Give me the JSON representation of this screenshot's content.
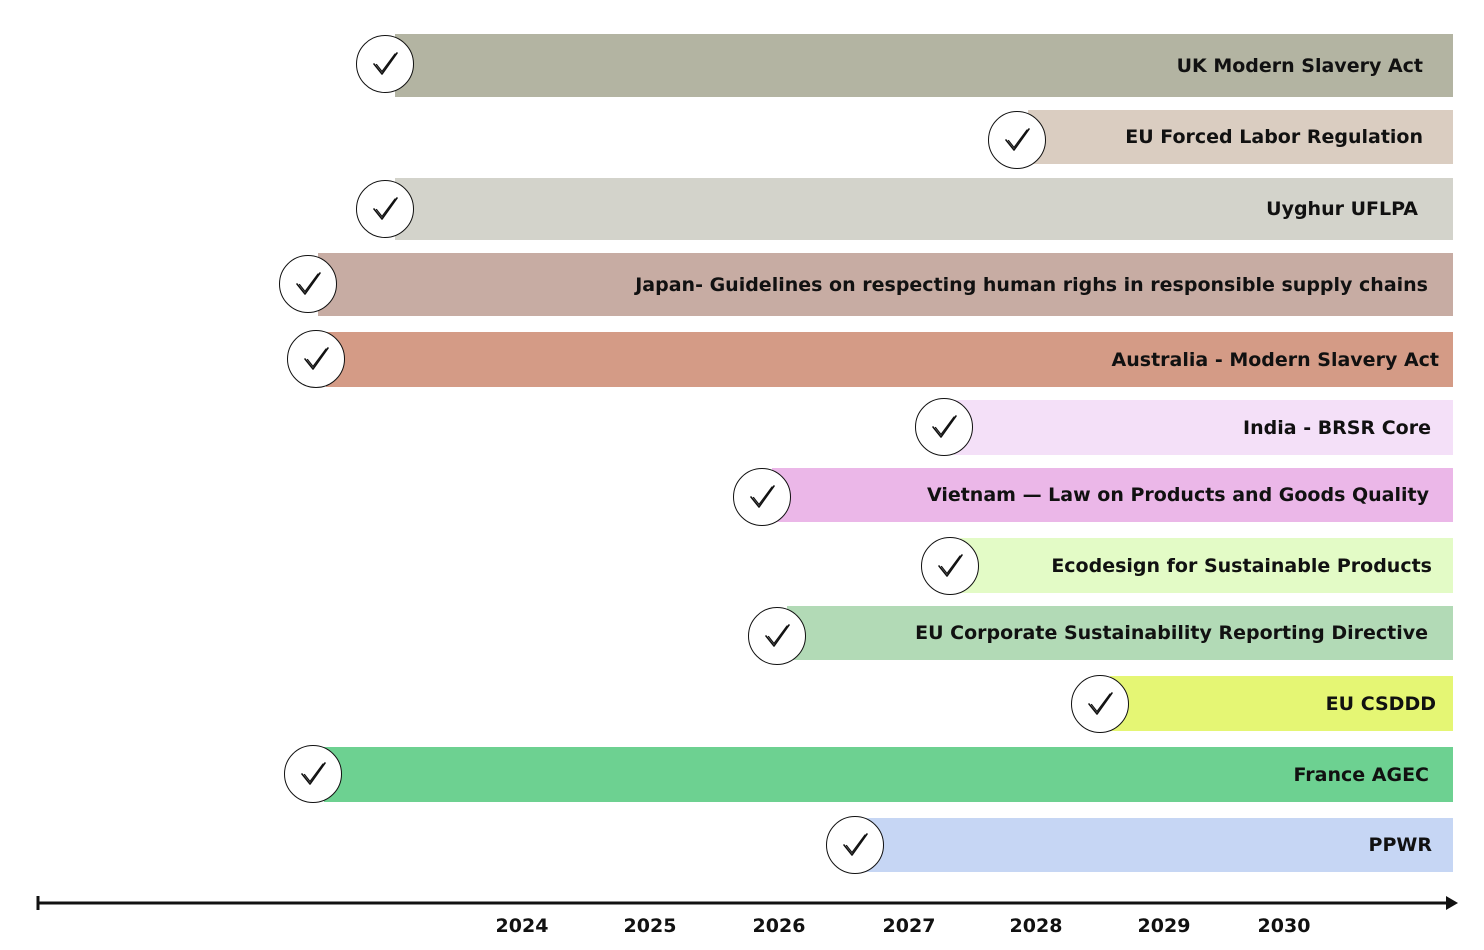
{
  "timeline": {
    "years": [
      "2024",
      "2025",
      "2026",
      "2027",
      "2028",
      "2029",
      "2030"
    ],
    "items": [
      {
        "label": "UK Modern Slavery Act",
        "color": "#b3b4a2",
        "icon": "check-circle-icon"
      },
      {
        "label": "EU Forced Labor Regulation",
        "color": "#dacdc1",
        "icon": "check-circle-icon"
      },
      {
        "label": "Uyghur UFLPA",
        "color": "#d3d3cb",
        "icon": "check-circle-icon"
      },
      {
        "label": "Japan- Guidelines on respecting human righs in responsible supply chains",
        "color": "#c7aca3",
        "icon": "check-circle-icon"
      },
      {
        "label": "Australia - Modern Slavery Act",
        "color": "#d49b86",
        "icon": "check-circle-icon"
      },
      {
        "label": "India - BRSR Core",
        "color": "#f4e0f8",
        "icon": "check-circle-icon"
      },
      {
        "label": "Vietnam — Law on Products and Goods Quality",
        "color": "#ebb7e8",
        "icon": "check-circle-icon"
      },
      {
        "label": "Ecodesign for Sustainable Products",
        "color": "#e3fbc6",
        "icon": "check-circle-icon"
      },
      {
        "label": "EU Corporate Sustainability Reporting Directive",
        "color": "#b2dab6",
        "icon": "check-circle-icon"
      },
      {
        "label": "EU CSDDD",
        "color": "#e5f674",
        "icon": "check-circle-icon"
      },
      {
        "label": "France AGEC",
        "color": "#6dd191",
        "icon": "check-circle-icon"
      },
      {
        "label": "PPWR",
        "color": "#c6d6f4",
        "icon": "check-circle-icon"
      }
    ]
  }
}
